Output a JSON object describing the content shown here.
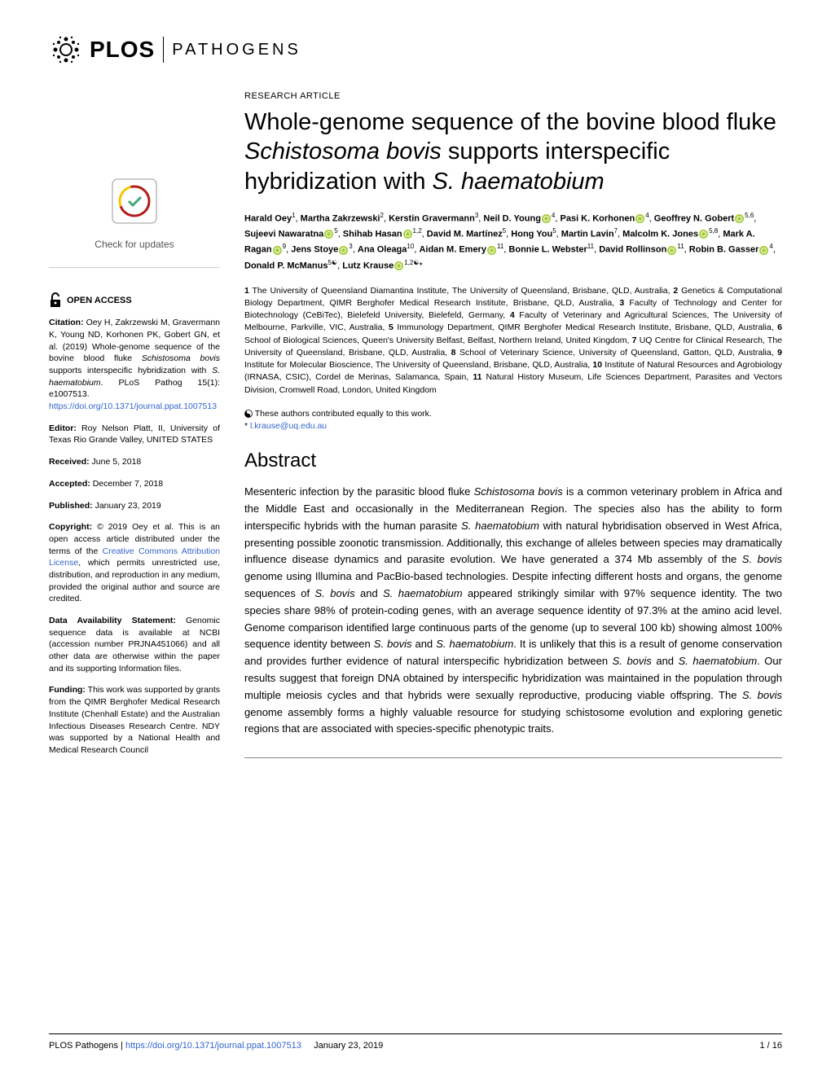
{
  "journal": {
    "brand": "PLOS",
    "name": "PATHOGENS"
  },
  "article": {
    "type": "RESEARCH ARTICLE",
    "title_html": "Whole-genome sequence of the bovine blood fluke <em>Schistosoma bovis</em> supports interspecific hybridization with <em>S. haematobium</em>"
  },
  "authors_html": "<b>Harald Oey</b><span class='sup'>1</span>, <b>Martha Zakrzewski</b><span class='sup'>2</span>, <b>Kerstin Gravermann</b><span class='sup'>3</span>, <b>Neil D. Young</b><span class='orcid'></span><span class='sup'>4</span>, <b>Pasi K. Korhonen</b><span class='orcid'></span><span class='sup'>4</span>, <b>Geoffrey N. Gobert</b><span class='orcid'></span><span class='sup'>5,6</span>, <b>Sujeevi Nawaratna</b><span class='orcid'></span><span class='sup'>5</span>, <b>Shihab Hasan</b><span class='orcid'></span><span class='sup'>1,2</span>, <b>David M. Martínez</b><span class='sup'>5</span>, <b>Hong You</b><span class='sup'>5</span>, <b>Martin Lavin</b><span class='sup'>7</span>, <b>Malcolm K. Jones</b><span class='orcid'></span><span class='sup'>5,8</span>, <b>Mark A. Ragan</b><span class='orcid'></span><span class='sup'>9</span>, <b>Jens Stoye</b><span class='orcid'></span><span class='sup'>3</span>, <b>Ana Oleaga</b><span class='sup'>10</span>, <b>Aidan M. Emery</b><span class='orcid'></span><span class='sup'>11</span>, <b>Bonnie L. Webster</b><span class='sup'>11</span>, <b>David Rollinson</b><span class='orcid'></span><span class='sup'>11</span>, <b>Robin B. Gasser</b><span class='orcid'></span><span class='sup'>4</span>, <b>Donald P. McManus</b><span class='sup'>5☯</span>, <b>Lutz Krause</b><span class='orcid'></span><span class='sup'>1,2☯</span>*",
  "affiliations_html": "<b>1</b> The University of Queensland Diamantina Institute, The University of Queensland, Brisbane, QLD, Australia, <b>2</b> Genetics & Computational Biology Department, QIMR Berghofer Medical Research Institute, Brisbane, QLD, Australia, <b>3</b> Faculty of Technology and Center for Biotechnology (CeBiTec), Bielefeld University, Bielefeld, Germany, <b>4</b> Faculty of Veterinary and Agricultural Sciences, The University of Melbourne, Parkville, VIC, Australia, <b>5</b> Immunology Department, QIMR Berghofer Medical Research Institute, Brisbane, QLD, Australia, <b>6</b> School of Biological Sciences, Queen's University Belfast, Belfast, Northern Ireland, United Kingdom, <b>7</b> UQ Centre for Clinical Research, The University of Queensland, Brisbane, QLD, Australia, <b>8</b> School of Veterinary Science, University of Queensland, Gatton, QLD, Australia, <b>9</b> Institute for Molecular Bioscience, The University of Queensland, Brisbane, QLD, Australia, <b>10</b> Institute of Natural Resources and Agrobiology (IRNASA, CSIC), Cordel de Merinas, Salamanca, Spain, <b>11</b> Natural History Museum, Life Sciences Department, Parasites and Vectors Division, Cromwell Road, London, United Kingdom",
  "contrib": {
    "equal": "These authors contributed equally to this work.",
    "corresponding": "l.krause@uq.edu.au"
  },
  "abstract": {
    "heading": "Abstract",
    "text_html": "Mesenteric infection by the parasitic blood fluke <em>Schistosoma bovis</em> is a common veterinary problem in Africa and the Middle East and occasionally in the Mediterranean Region. The species also has the ability to form interspecific hybrids with the human parasite <em>S. haematobium</em> with natural hybridisation observed in West Africa, presenting possible zoonotic transmission. Additionally, this exchange of alleles between species may dramatically influence disease dynamics and parasite evolution. We have generated a 374 Mb assembly of the <em>S. bovis</em> genome using Illumina and PacBio-based technologies. Despite infecting different hosts and organs, the genome sequences of <em>S. bovis</em> and <em>S. haematobium</em> appeared strikingly similar with 97% sequence identity. The two species share 98% of protein-coding genes, with an average sequence identity of 97.3% at the amino acid level. Genome comparison identified large continuous parts of the genome (up to several 100 kb) showing almost 100% sequence identity between <em>S. bovis</em> and <em>S. haematobium</em>. It is unlikely that this is a result of genome conservation and provides further evidence of natural interspecific hybridization between <em>S. bovis</em> and <em>S. haematobium</em>. Our results suggest that foreign DNA obtained by interspecific hybridization was maintained in the population through multiple meiosis cycles and that hybrids were sexually reproductive, producing viable offspring. The <em>S. bovis</em> genome assembly forms a highly valuable resource for studying schistosome evolution and exploring genetic regions that are associated with species-specific phenotypic traits."
  },
  "sidebar": {
    "check_updates": "Check for updates",
    "open_access": "OPEN ACCESS",
    "citation_label": "Citation:",
    "citation_text_html": "Oey H, Zakrzewski M, Gravermann K, Young ND, Korhonen PK, Gobert GN, et al. (2019) Whole-genome sequence of the bovine blood fluke <span class='italic'>Schistosoma bovis</span> supports interspecific hybridization with <span class='italic'>S. haematobium</span>. PLoS Pathog 15(1): e1007513. ",
    "citation_link": "https://doi.org/10.1371/journal.ppat.1007513",
    "editor_label": "Editor:",
    "editor_text": "Roy Nelson Platt, II, University of Texas Rio Grande Valley, UNITED STATES",
    "received_label": "Received:",
    "received_text": "June 5, 2018",
    "accepted_label": "Accepted:",
    "accepted_text": "December 7, 2018",
    "published_label": "Published:",
    "published_text": "January 23, 2019",
    "copyright_label": "Copyright:",
    "copyright_text_html": "© 2019 Oey et al. This is an open access article distributed under the terms of the <span class='link'>Creative Commons Attribution License</span>, which permits unrestricted use, distribution, and reproduction in any medium, provided the original author and source are credited.",
    "data_label": "Data Availability Statement:",
    "data_text": "Genomic sequence data is available at NCBI (accession number PRJNA451066) and all other data are otherwise within the paper and its supporting Information files.",
    "funding_label": "Funding:",
    "funding_text": "This work was supported by grants from the QIMR Berghofer Medical Research Institute (Chenhall Estate) and the Australian Infectious Diseases Research Centre. NDY was supported by a National Health and Medical Research Council"
  },
  "footer": {
    "journal": "PLOS Pathogens | ",
    "doi": "https://doi.org/10.1371/journal.ppat.1007513",
    "date": "January 23, 2019",
    "page": "1 / 16"
  }
}
